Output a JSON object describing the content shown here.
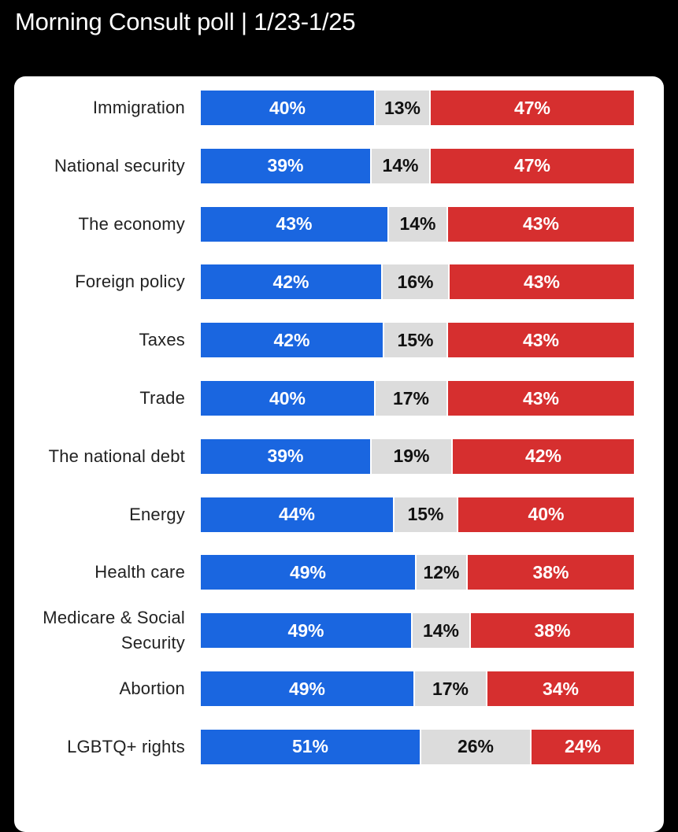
{
  "header": {
    "title": "Morning Consult poll | 1/23-1/25"
  },
  "colors": {
    "approve": "#1a66e0",
    "neutral": "#dcdcdc",
    "disapprove": "#d62f2f"
  },
  "chart_data": {
    "type": "bar",
    "orientation": "horizontal",
    "stacked": true,
    "normalized": true,
    "title": "",
    "categories": [
      "Immigration",
      "National security",
      "The economy",
      "Foreign policy",
      "Taxes",
      "Trade",
      "The national debt",
      "Energy",
      "Health care",
      "Medicare & Social Security",
      "Abortion",
      "LGBTQ+ rights"
    ],
    "series": [
      {
        "name": "blue",
        "color": "#1a66e0",
        "values": [
          40,
          39,
          43,
          42,
          42,
          40,
          39,
          44,
          49,
          49,
          49,
          51
        ]
      },
      {
        "name": "gray",
        "color": "#dcdcdc",
        "values": [
          13,
          14,
          14,
          16,
          15,
          17,
          19,
          15,
          12,
          14,
          17,
          26
        ]
      },
      {
        "name": "red",
        "color": "#d62f2f",
        "values": [
          47,
          47,
          43,
          43,
          43,
          43,
          42,
          40,
          38,
          38,
          34,
          24
        ]
      }
    ],
    "data_labels": [
      [
        "40%",
        "13%",
        "47%"
      ],
      [
        "39%",
        "14%",
        "47%"
      ],
      [
        "43%",
        "14%",
        "43%"
      ],
      [
        "42%",
        "16%",
        "43%"
      ],
      [
        "42%",
        "15%",
        "43%"
      ],
      [
        "40%",
        "17%",
        "43%"
      ],
      [
        "39%",
        "19%",
        "42%"
      ],
      [
        "44%",
        "15%",
        "40%"
      ],
      [
        "49%",
        "12%",
        "38%"
      ],
      [
        "49%",
        "14%",
        "38%"
      ],
      [
        "49%",
        "17%",
        "34%"
      ],
      [
        "51%",
        "26%",
        "24%"
      ]
    ],
    "label_lines": [
      [
        "Immigration"
      ],
      [
        "National security"
      ],
      [
        "The economy"
      ],
      [
        "Foreign policy"
      ],
      [
        "Taxes"
      ],
      [
        "Trade"
      ],
      [
        "The national debt"
      ],
      [
        "Energy"
      ],
      [
        "Health care"
      ],
      [
        "Medicare & Social",
        "Security"
      ],
      [
        "Abortion"
      ],
      [
        "LGBTQ+ rights"
      ]
    ],
    "xlim": [
      0,
      100
    ]
  }
}
